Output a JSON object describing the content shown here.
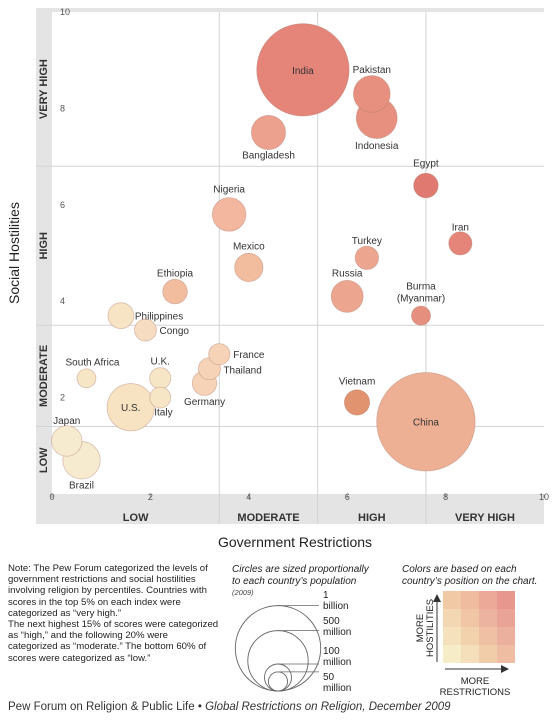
{
  "chart_data": {
    "type": "scatter",
    "xlabel": "Government Restrictions",
    "ylabel": "Social Hostilities",
    "xlim": [
      0,
      10
    ],
    "ylim": [
      0,
      10
    ],
    "x_ticks": [
      "0",
      "2",
      "4",
      "6",
      "8",
      "10"
    ],
    "y_ticks": [
      "2",
      "4",
      "6",
      "8",
      "10"
    ],
    "x_bands": [
      {
        "label": "LOW",
        "range": [
          0,
          3.4
        ]
      },
      {
        "label": "MODERATE",
        "range": [
          3.4,
          5.4
        ]
      },
      {
        "label": "HIGH",
        "range": [
          5.4,
          7.6
        ]
      },
      {
        "label": "VERY HIGH",
        "range": [
          7.6,
          10
        ]
      }
    ],
    "y_bands": [
      {
        "label": "LOW",
        "range": [
          0,
          1.4
        ]
      },
      {
        "label": "MODERATE",
        "range": [
          1.4,
          3.5
        ]
      },
      {
        "label": "HIGH",
        "range": [
          3.5,
          6.8
        ]
      },
      {
        "label": "VERY HIGH",
        "range": [
          6.8,
          10
        ]
      }
    ],
    "points": [
      {
        "label": "India",
        "x": 5.1,
        "y": 8.8,
        "population_millions": 1170,
        "color": "#e5857a"
      },
      {
        "label": "Pakistan",
        "x": 6.5,
        "y": 8.3,
        "population_millions": 185,
        "color": "#e8907f"
      },
      {
        "label": "Indonesia",
        "x": 6.6,
        "y": 7.8,
        "population_millions": 230,
        "color": "#e8907f"
      },
      {
        "label": "Bangladesh",
        "x": 4.4,
        "y": 7.5,
        "population_millions": 160,
        "color": "#eca08e"
      },
      {
        "label": "Egypt",
        "x": 7.6,
        "y": 6.4,
        "population_millions": 83,
        "color": "#e07a70"
      },
      {
        "label": "Nigeria",
        "x": 3.6,
        "y": 5.8,
        "population_millions": 155,
        "color": "#f2b79e"
      },
      {
        "label": "Iran",
        "x": 8.3,
        "y": 5.2,
        "population_millions": 74,
        "color": "#e5857a"
      },
      {
        "label": "Mexico",
        "x": 4.0,
        "y": 4.7,
        "population_millions": 110,
        "color": "#f2bc9f"
      },
      {
        "label": "Turkey",
        "x": 6.4,
        "y": 4.9,
        "population_millions": 75,
        "color": "#eca68f"
      },
      {
        "label": "Russia",
        "x": 6.0,
        "y": 4.1,
        "population_millions": 140,
        "color": "#eca68f"
      },
      {
        "label": "Ethiopia",
        "x": 2.5,
        "y": 4.2,
        "population_millions": 83,
        "color": "#f2bc9f"
      },
      {
        "label": "Burma (Myanmar)",
        "x": 7.5,
        "y": 3.7,
        "population_millions": 50,
        "color": "#e5907e"
      },
      {
        "label": "Philippines",
        "x": 1.4,
        "y": 3.7,
        "population_millions": 92,
        "color": "#f6e4c4"
      },
      {
        "label": "Congo",
        "x": 1.9,
        "y": 3.4,
        "population_millions": 66,
        "color": "#f6dcc0"
      },
      {
        "label": "France",
        "x": 3.4,
        "y": 2.9,
        "population_millions": 62,
        "color": "#f6d3b6"
      },
      {
        "label": "Thailand",
        "x": 3.2,
        "y": 2.6,
        "population_millions": 67,
        "color": "#f6d3b6"
      },
      {
        "label": "Germany",
        "x": 3.1,
        "y": 2.3,
        "population_millions": 82,
        "color": "#f6d3b6"
      },
      {
        "label": "South Africa",
        "x": 0.7,
        "y": 2.4,
        "population_millions": 49,
        "color": "#f6e6c6"
      },
      {
        "label": "U.K.",
        "x": 2.2,
        "y": 2.4,
        "population_millions": 62,
        "color": "#f7e6c6"
      },
      {
        "label": "Italy",
        "x": 2.2,
        "y": 2.0,
        "population_millions": 60,
        "color": "#f7e6c6"
      },
      {
        "label": "U.S.",
        "x": 1.6,
        "y": 1.8,
        "population_millions": 307,
        "color": "#f7e3c1"
      },
      {
        "label": "Vietnam",
        "x": 6.2,
        "y": 1.9,
        "population_millions": 88,
        "color": "#e0936e"
      },
      {
        "label": "China",
        "x": 7.6,
        "y": 1.5,
        "population_millions": 1330,
        "color": "#eeb094"
      },
      {
        "label": "Japan",
        "x": 0.3,
        "y": 1.1,
        "population_millions": 127,
        "color": "#f7ebcf"
      },
      {
        "label": "Brazil",
        "x": 0.6,
        "y": 0.7,
        "population_millions": 192,
        "color": "#f7ebcf"
      }
    ]
  },
  "note": "Note: The Pew Forum categorized the levels of government restrictions and social hostilities involving religion by percentiles. Countries with scores in the top 5% on each index were categorized as “very high.”\nThe next highest 15% of scores were categorized as “high,” and the following 20% were categorized as “moderate.” The bottom 60% of scores were categorized as “low.”",
  "size_legend": {
    "title_lines": [
      "Circles are sized proportionally",
      "to each country’s population"
    ],
    "year": "(2009)",
    "items": [
      {
        "line1": "1",
        "line2": "billion",
        "value_millions": 1000
      },
      {
        "line1": "500",
        "line2": "million",
        "value_millions": 500
      },
      {
        "line1": "100",
        "line2": "million",
        "value_millions": 100
      },
      {
        "line1": "50",
        "line2": "million",
        "value_millions": 50
      }
    ]
  },
  "color_legend": {
    "title_lines": [
      "Colors are based on each",
      "country’s position on the chart."
    ],
    "y_label_lines": [
      "MORE",
      "HOSTILITIES"
    ],
    "x_label_lines": [
      "MORE",
      "RESTRICTIONS"
    ],
    "grid_colors": [
      [
        "#f1c9a4",
        "#efbca0",
        "#eca998",
        "#e8978f"
      ],
      [
        "#f3d6b2",
        "#f0c6a6",
        "#ecb3a0",
        "#eaa497"
      ],
      [
        "#f5e2bd",
        "#f2d2ad",
        "#efc0a4",
        "#ecb09e"
      ],
      [
        "#f7ecc8",
        "#f5dfba",
        "#f1cdaa",
        "#eebda2"
      ]
    ]
  },
  "footer": {
    "source": "Pew Forum on Religion & Public Life • ",
    "title": "Global Restrictions on Religion, December 2009"
  }
}
